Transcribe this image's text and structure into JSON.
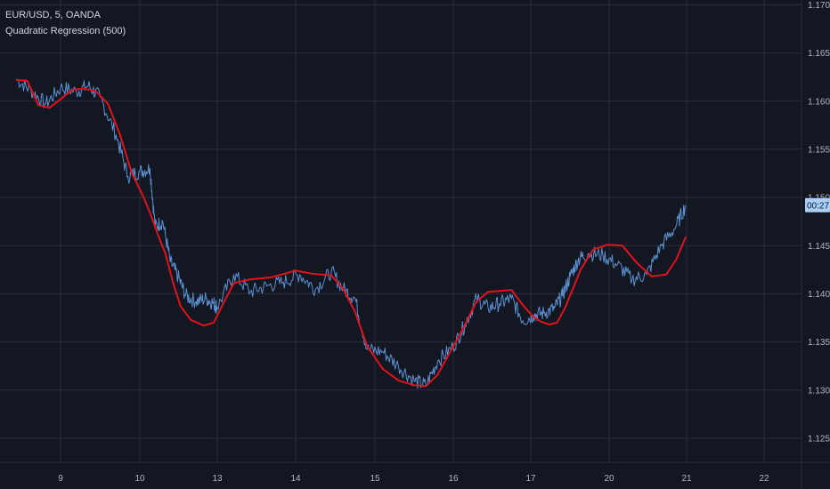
{
  "chart_data": {
    "type": "line",
    "title": "EUR/USD, 5, OANDA",
    "subtitle": "Quadratic Regression (500)",
    "price_tag": "00:27",
    "x_ticks": [
      "9",
      "10",
      "13",
      "14",
      "15",
      "16",
      "17",
      "20",
      "21",
      "22"
    ],
    "y_ticks": [
      "1.1700",
      "1.1650",
      "1.1600",
      "1.1550",
      "1.1500",
      "1.1450",
      "1.1400",
      "1.1350",
      "1.1300",
      "1.1250"
    ],
    "ylim": [
      1.1225,
      1.1705
    ],
    "grid": true,
    "last_price": 1.1492,
    "colors": {
      "background": "#131722",
      "grid": "#2a2e39",
      "price": "#5b8fcf",
      "regression": "#e0121c",
      "tag": "#a9cffa"
    },
    "series": [
      {
        "values": [
          [
            8.4,
            1.1623
          ],
          [
            8.6,
            1.1611
          ],
          [
            8.8,
            1.1597
          ],
          [
            9.0,
            1.1614
          ],
          [
            9.2,
            1.161
          ],
          [
            9.35,
            1.1616
          ],
          [
            9.5,
            1.1604
          ],
          [
            9.7,
            1.1565
          ],
          [
            9.85,
            1.1522
          ],
          [
            10.0,
            1.1527
          ],
          [
            10.2,
            1.153
          ],
          [
            10.3,
            1.147
          ],
          [
            10.45,
            1.1475
          ],
          [
            10.6,
            1.1433
          ],
          [
            10.75,
            1.1418
          ],
          [
            10.9,
            1.1398
          ],
          [
            11.1,
            1.1392
          ],
          [
            11.3,
            1.1395
          ],
          [
            11.45,
            1.139
          ],
          [
            13.05,
            1.1386
          ],
          [
            13.25,
            1.142
          ],
          [
            13.45,
            1.1402
          ],
          [
            13.65,
            1.1408
          ],
          [
            13.85,
            1.1412
          ],
          [
            14.05,
            1.142
          ],
          [
            14.25,
            1.1405
          ],
          [
            14.45,
            1.1423
          ],
          [
            14.6,
            1.1405
          ],
          [
            14.75,
            1.1395
          ],
          [
            14.9,
            1.1342
          ],
          [
            15.1,
            1.134
          ],
          [
            15.3,
            1.1325
          ],
          [
            15.5,
            1.131
          ],
          [
            15.65,
            1.1305
          ],
          [
            15.8,
            1.133
          ],
          [
            16.0,
            1.1345
          ],
          [
            16.15,
            1.1368
          ],
          [
            16.3,
            1.1395
          ],
          [
            16.45,
            1.1385
          ],
          [
            16.6,
            1.139
          ],
          [
            16.75,
            1.1395
          ],
          [
            16.9,
            1.1372
          ],
          [
            17.05,
            1.1378
          ],
          [
            17.25,
            1.138
          ],
          [
            17.45,
            1.1385
          ],
          [
            17.6,
            1.1398
          ],
          [
            17.75,
            1.1418
          ],
          [
            17.9,
            1.1435
          ],
          [
            18.05,
            1.1442
          ],
          [
            18.2,
            1.144
          ],
          [
            18.35,
            1.143
          ],
          [
            18.5,
            1.1415
          ],
          [
            18.65,
            1.142
          ],
          [
            18.8,
            1.145
          ],
          [
            18.95,
            1.147
          ],
          [
            19.05,
            1.1492
          ]
        ]
      },
      {
        "values": [
          [
            8.4,
            1.1622
          ],
          [
            8.55,
            1.1621
          ],
          [
            8.7,
            1.1596
          ],
          [
            8.85,
            1.1593
          ],
          [
            9.0,
            1.1602
          ],
          [
            9.15,
            1.1612
          ],
          [
            9.3,
            1.1613
          ],
          [
            9.45,
            1.161
          ],
          [
            9.6,
            1.1597
          ],
          [
            9.75,
            1.1565
          ],
          [
            9.9,
            1.1525
          ],
          [
            10.05,
            1.1503
          ],
          [
            10.2,
            1.1484
          ],
          [
            10.35,
            1.1462
          ],
          [
            10.5,
            1.1442
          ],
          [
            10.65,
            1.1412
          ],
          [
            10.8,
            1.1387
          ],
          [
            11.0,
            1.1373
          ],
          [
            11.25,
            1.1367
          ],
          [
            11.45,
            1.137
          ],
          [
            13.1,
            1.1386
          ],
          [
            13.25,
            1.1411
          ],
          [
            13.45,
            1.1415
          ],
          [
            13.7,
            1.1417
          ],
          [
            14.0,
            1.1424
          ],
          [
            14.2,
            1.1421
          ],
          [
            14.45,
            1.1419
          ],
          [
            14.6,
            1.1405
          ],
          [
            14.75,
            1.1381
          ],
          [
            14.9,
            1.1346
          ],
          [
            15.1,
            1.1322
          ],
          [
            15.3,
            1.131
          ],
          [
            15.5,
            1.1305
          ],
          [
            15.65,
            1.1304
          ],
          [
            15.8,
            1.1316
          ],
          [
            15.95,
            1.1338
          ],
          [
            16.1,
            1.136
          ],
          [
            16.3,
            1.1392
          ],
          [
            16.45,
            1.1402
          ],
          [
            16.6,
            1.1403
          ],
          [
            16.75,
            1.1404
          ],
          [
            16.9,
            1.1388
          ],
          [
            17.05,
            1.1376
          ],
          [
            17.2,
            1.1371
          ],
          [
            17.35,
            1.1368
          ],
          [
            17.5,
            1.137
          ],
          [
            17.65,
            1.1385
          ],
          [
            17.8,
            1.1405
          ],
          [
            17.95,
            1.1425
          ],
          [
            18.1,
            1.1446
          ],
          [
            18.25,
            1.1451
          ],
          [
            18.4,
            1.145
          ],
          [
            18.55,
            1.1432
          ],
          [
            18.7,
            1.1418
          ],
          [
            18.85,
            1.142
          ],
          [
            18.95,
            1.1435
          ],
          [
            19.05,
            1.1459
          ]
        ]
      }
    ]
  }
}
